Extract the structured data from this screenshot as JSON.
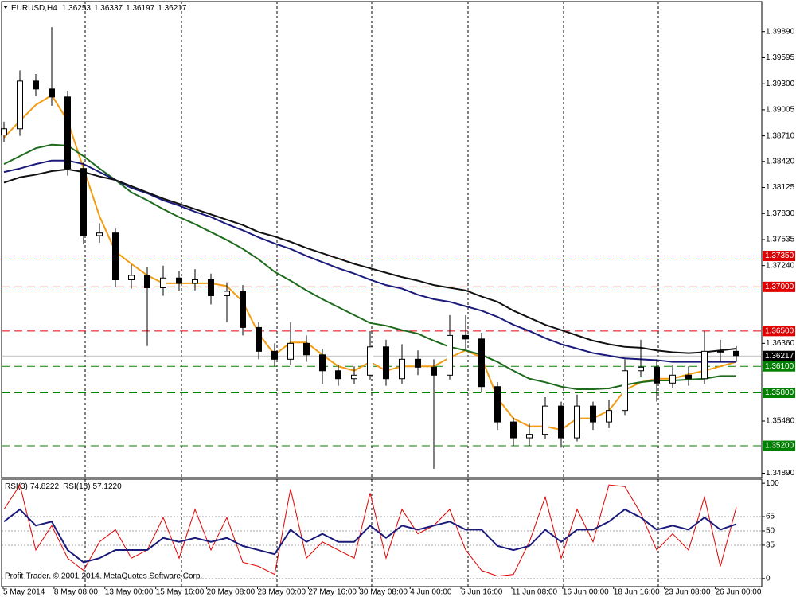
{
  "chart_data": {
    "type": "candlestick",
    "title": "EURUSD,H4",
    "ohlc_readout": [
      1.36253,
      1.36337,
      1.36197,
      1.36217
    ],
    "time_labels": [
      "5 May 2014",
      "8 May 08:00",
      "13 May 00:00",
      "15 May 16:00",
      "20 May 08:00",
      "23 May 00:00",
      "27 May 16:00",
      "30 May 08:00",
      "4 Jun 00:00",
      "6 Jun 16:00",
      "11 Jun 08:00",
      "16 Jun 00:00",
      "18 Jun 16:00",
      "23 Jun 08:00",
      "26 Jun 00:00"
    ],
    "open": [
      1.3872,
      1.3879,
      1.3933,
      1.3924,
      1.3915,
      1.3834,
      1.3758,
      1.3761,
      1.3708,
      1.3713,
      1.3699,
      1.371,
      1.3704,
      1.3708,
      1.369,
      1.3695,
      1.3654,
      1.3627,
      1.3618,
      1.3636,
      1.3623,
      1.3605,
      1.3596,
      1.36,
      1.3632,
      1.3596,
      1.3618,
      1.3609,
      1.36,
      1.3645,
      1.3641,
      1.3587,
      1.3547,
      1.3529,
      1.3533,
      1.3565,
      1.3529,
      1.3565,
      1.3547,
      1.356,
      1.3605,
      1.3609,
      1.3591,
      1.36,
      1.3596,
      1.3627,
      1.3627
    ],
    "high": [
      1.3887,
      1.3945,
      1.3941,
      1.3994,
      1.3922,
      1.3842,
      1.3772,
      1.3766,
      1.3725,
      1.3722,
      1.3724,
      1.3718,
      1.372,
      1.3715,
      1.3705,
      1.3702,
      1.366,
      1.3636,
      1.366,
      1.3645,
      1.363,
      1.3612,
      1.361,
      1.365,
      1.364,
      1.3635,
      1.3628,
      1.3618,
      1.3668,
      1.3668,
      1.3648,
      1.3592,
      1.3552,
      1.3545,
      1.3575,
      1.357,
      1.3578,
      1.357,
      1.3572,
      1.3618,
      1.364,
      1.3618,
      1.3612,
      1.361,
      1.365,
      1.364,
      1.3633
    ],
    "low": [
      1.3864,
      1.3871,
      1.3916,
      1.3905,
      1.3826,
      1.3748,
      1.375,
      1.37,
      1.3698,
      1.3633,
      1.369,
      1.3695,
      1.3696,
      1.368,
      1.366,
      1.3645,
      1.3618,
      1.361,
      1.3612,
      1.3615,
      1.359,
      1.3588,
      1.359,
      1.3595,
      1.3588,
      1.359,
      1.36,
      1.3494,
      1.3595,
      1.363,
      1.358,
      1.3538,
      1.352,
      1.352,
      1.3528,
      1.3518,
      1.3525,
      1.3538,
      1.354,
      1.3555,
      1.3598,
      1.357,
      1.3585,
      1.3588,
      1.359,
      1.3615,
      1.3615
    ],
    "close": [
      1.3879,
      1.3933,
      1.3924,
      1.3915,
      1.3834,
      1.3758,
      1.3761,
      1.3708,
      1.3713,
      1.3699,
      1.371,
      1.3704,
      1.3708,
      1.369,
      1.3695,
      1.3654,
      1.3627,
      1.3618,
      1.3636,
      1.3623,
      1.3605,
      1.3596,
      1.36,
      1.3632,
      1.3596,
      1.3618,
      1.3609,
      1.36,
      1.3645,
      1.3641,
      1.3587,
      1.3547,
      1.3529,
      1.3533,
      1.3565,
      1.3529,
      1.3565,
      1.3547,
      1.356,
      1.3605,
      1.3609,
      1.3591,
      1.36,
      1.3596,
      1.3627,
      1.3627,
      1.3622
    ],
    "moving_averages": [
      {
        "color": "#f39c12",
        "values": [
          1.3869,
          1.3888,
          1.3906,
          1.3917,
          1.3888,
          1.3834,
          1.378,
          1.374,
          1.3726,
          1.3713,
          1.3704,
          1.3704,
          1.3704,
          1.3704,
          1.3701,
          1.3683,
          1.3647,
          1.3623,
          1.3637,
          1.3637,
          1.3623,
          1.361,
          1.3605,
          1.3615,
          1.3605,
          1.361,
          1.361,
          1.361,
          1.362,
          1.3628,
          1.362,
          1.3574,
          1.3551,
          1.3542,
          1.3542,
          1.3538,
          1.3551,
          1.3551,
          1.356,
          1.3583,
          1.3592,
          1.3596,
          1.3596,
          1.3601,
          1.3605,
          1.361,
          1.3615
        ]
      },
      {
        "color": "#1e6b1e",
        "values": [
          1.3839,
          1.3848,
          1.3857,
          1.3861,
          1.386,
          1.3848,
          1.3834,
          1.3821,
          1.3807,
          1.3798,
          1.3788,
          1.3779,
          1.3771,
          1.3762,
          1.3753,
          1.3743,
          1.3731,
          1.3717,
          1.3707,
          1.3696,
          1.3686,
          1.3677,
          1.3668,
          1.3659,
          1.3656,
          1.3651,
          1.3647,
          1.3639,
          1.3632,
          1.3628,
          1.3623,
          1.3615,
          1.3605,
          1.3596,
          1.3592,
          1.3587,
          1.3584,
          1.3584,
          1.3585,
          1.3589,
          1.3592,
          1.3594,
          1.3594,
          1.3595,
          1.3596,
          1.3599,
          1.3599
        ]
      },
      {
        "color": "#1a1a7a",
        "values": [
          1.383,
          1.3834,
          1.3839,
          1.3843,
          1.3843,
          1.3839,
          1.383,
          1.3821,
          1.3812,
          1.3806,
          1.3798,
          1.3792,
          1.3785,
          1.3779,
          1.3771,
          1.3764,
          1.3756,
          1.3749,
          1.3743,
          1.3735,
          1.3728,
          1.3721,
          1.3715,
          1.3708,
          1.3702,
          1.3698,
          1.3691,
          1.3686,
          1.3683,
          1.3678,
          1.3673,
          1.3666,
          1.3657,
          1.365,
          1.3642,
          1.3635,
          1.363,
          1.3625,
          1.3622,
          1.3619,
          1.3618,
          1.3617,
          1.3615,
          1.3615,
          1.3615,
          1.3615,
          1.3615
        ]
      },
      {
        "color": "#111111",
        "values": [
          1.3818,
          1.3824,
          1.3827,
          1.3831,
          1.3833,
          1.383,
          1.3825,
          1.3821,
          1.3814,
          1.3807,
          1.38,
          1.3794,
          1.3788,
          1.3782,
          1.3776,
          1.377,
          1.3762,
          1.3757,
          1.3751,
          1.3744,
          1.3738,
          1.3732,
          1.3726,
          1.3721,
          1.3716,
          1.3711,
          1.3707,
          1.3702,
          1.3699,
          1.3696,
          1.3689,
          1.3683,
          1.3673,
          1.3665,
          1.3657,
          1.3651,
          1.3645,
          1.3639,
          1.3635,
          1.3632,
          1.3631,
          1.3628,
          1.3626,
          1.3625,
          1.3626,
          1.3628,
          1.363
        ]
      }
    ],
    "ylim": [
      1.3484,
      1.4023
    ],
    "yticks": [
      {
        "value": 1.3989,
        "label": "1.39890"
      },
      1.39595,
      {
        "value": 1.393,
        "label": "1.39300"
      },
      1.39005,
      {
        "value": 1.3871,
        "label": "1.38710"
      },
      {
        "value": 1.3842,
        "label": "1.38420"
      },
      1.38125,
      {
        "value": 1.3783,
        "label": "1.37830"
      },
      1.37535,
      {
        "value": 1.3724,
        "label": "1.37240"
      },
      {
        "value": 1.3636,
        "label": "1.36360"
      },
      {
        "value": 1.3548,
        "label": "1.35480"
      },
      {
        "value": 1.3489,
        "label": "1.34890"
      }
    ],
    "levels": [
      {
        "value": 1.3735,
        "label": "1.37350",
        "color": "#e00000"
      },
      {
        "value": 1.37,
        "label": "1.37000",
        "color": "#e00000"
      },
      {
        "value": 1.365,
        "label": "1.36500",
        "color": "#e00000"
      },
      {
        "value": 1.361,
        "label": "1.36100",
        "color": "#008000"
      },
      {
        "value": 1.358,
        "label": "1.35800",
        "color": "#008000"
      },
      {
        "value": 1.352,
        "label": "1.35200",
        "color": "#008000"
      }
    ],
    "current_price": 1.36217,
    "grid": true,
    "rsi": {
      "series": [
        {
          "name": "RSI(3)",
          "reading": "74.8222",
          "color": "#e00000",
          "values": [
            72.6,
            98.3,
            29.9,
            55.6,
            21.4,
            8.5,
            38.5,
            51.3,
            21.4,
            29.9,
            64.1,
            21.4,
            72.6,
            29.9,
            64.1,
            17.1,
            12.8,
            4.3,
            94.0,
            21.4,
            38.5,
            29.9,
            21.4,
            89.7,
            21.4,
            72.6,
            47.0,
            55.6,
            72.6,
            29.9,
            8.5,
            2.6,
            4.3,
            38.5,
            85.5,
            21.4,
            72.6,
            38.5,
            98.3,
            96.6,
            68.4,
            29.9,
            47.0,
            29.9,
            85.5,
            12.8,
            74.8222
          ]
        },
        {
          "name": "RSI(13)",
          "reading": "57.1220",
          "color": "#1a1a7a",
          "values": [
            59.8,
            72.6,
            55.6,
            59.8,
            29.9,
            17.1,
            21.4,
            29.9,
            29.9,
            29.9,
            42.7,
            38.5,
            42.7,
            38.5,
            42.7,
            34.2,
            29.9,
            25.6,
            51.3,
            38.5,
            47.0,
            38.5,
            38.5,
            55.6,
            42.7,
            55.6,
            51.3,
            55.6,
            59.8,
            51.3,
            51.3,
            34.2,
            29.9,
            34.2,
            51.3,
            38.5,
            51.3,
            51.3,
            59.8,
            72.6,
            64.1,
            51.3,
            55.6,
            51.3,
            64.1,
            51.3,
            57.122
          ]
        }
      ],
      "ylim": [
        -8.5,
        104.3
      ],
      "yticks": [
        0,
        35,
        50,
        65,
        100
      ]
    }
  },
  "footer": "Profit-Trader, © 2001-2014, MetaQuotes Software Corp."
}
